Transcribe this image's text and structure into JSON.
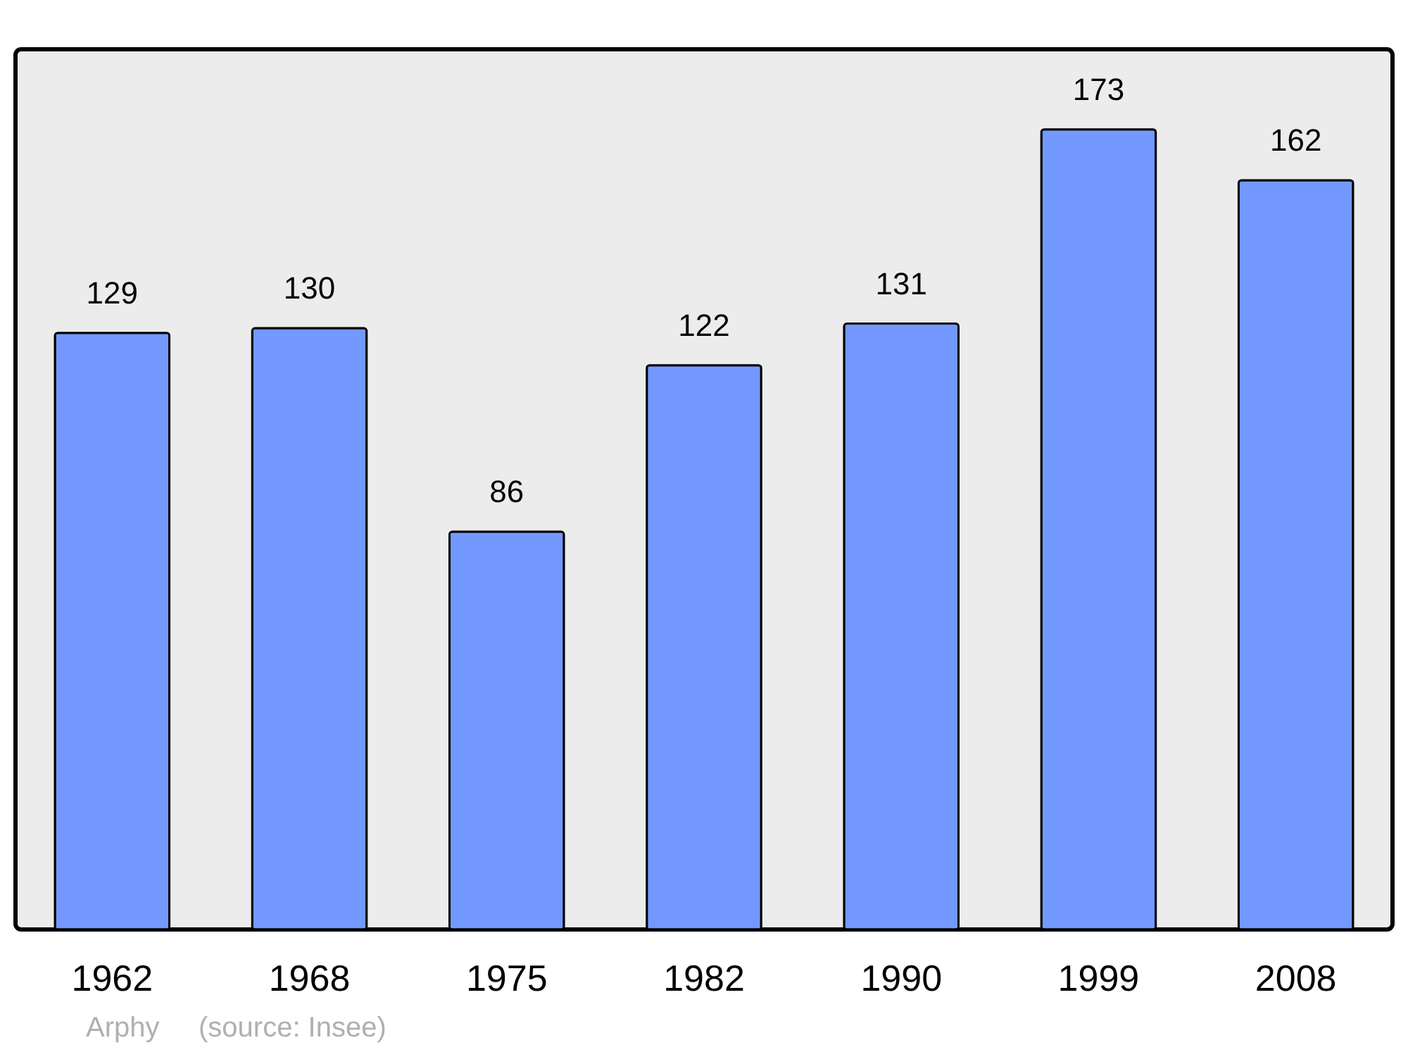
{
  "chart_data": {
    "type": "bar",
    "categories": [
      "1962",
      "1968",
      "1975",
      "1982",
      "1990",
      "1999",
      "2008"
    ],
    "values": [
      129,
      130,
      86,
      122,
      131,
      173,
      162
    ],
    "color": "#7399ff",
    "data_labels": true,
    "annotations": [
      "Arphy",
      "(source: Insee)"
    ]
  }
}
